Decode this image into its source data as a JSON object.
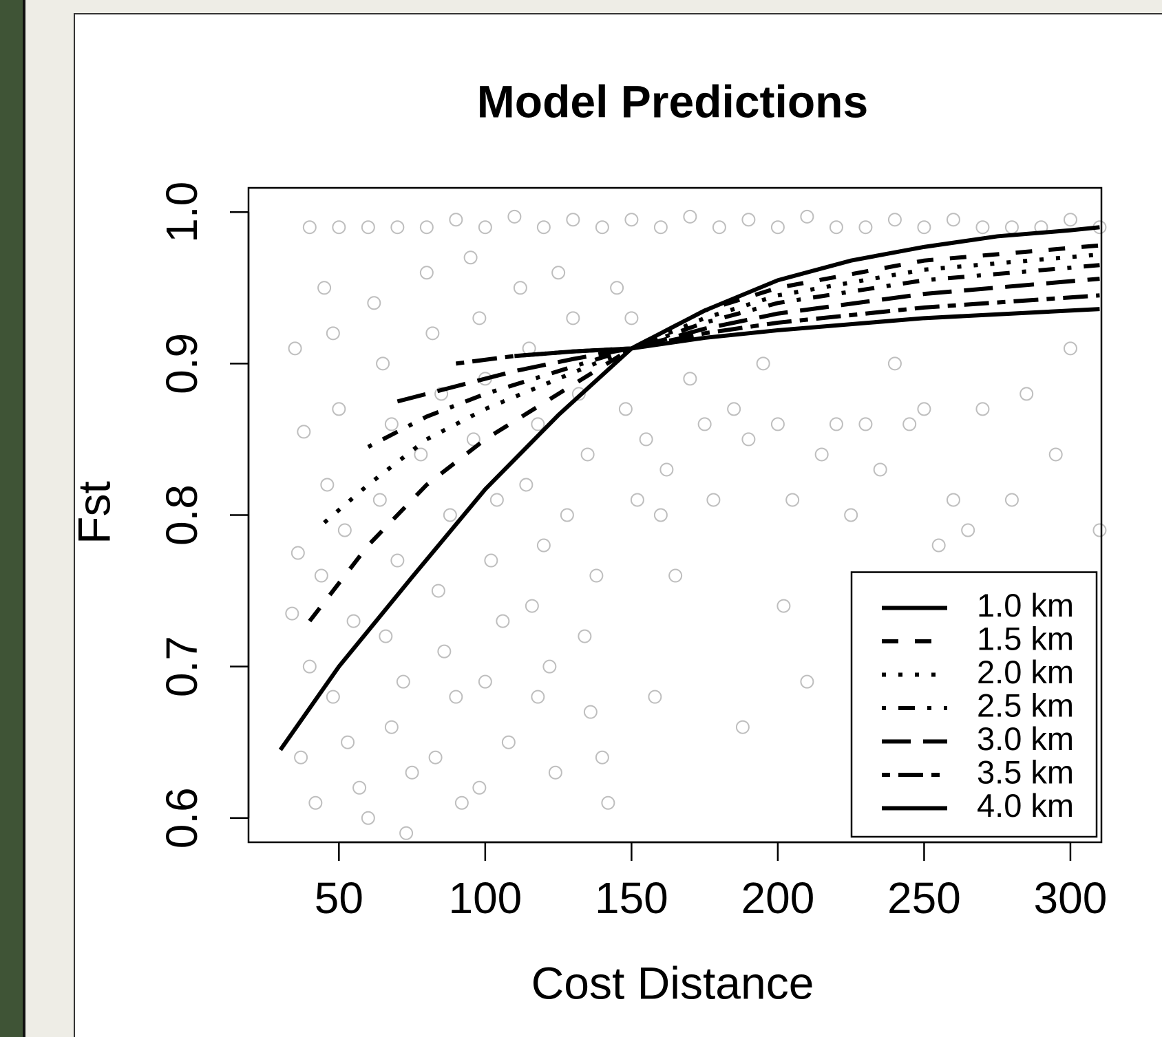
{
  "chart_data": {
    "type": "line",
    "title": "Model Predictions",
    "x_label": "Cost Distance",
    "y_label": "Fst",
    "xlim": [
      19.1,
      310.6
    ],
    "ylim": [
      0.584,
      1.016
    ],
    "xticks": [
      50,
      100,
      150,
      200,
      250,
      300
    ],
    "yticks": [
      0.6,
      0.7,
      0.8,
      0.9,
      {
        "value": 1,
        "label": "1.0"
      }
    ],
    "legend": "bottom-right",
    "scatter": {
      "color": "#bebebe",
      "x": [
        40,
        50,
        60,
        70,
        80,
        90,
        100,
        110,
        120,
        130,
        140,
        150,
        160,
        170,
        180,
        190,
        200,
        210,
        220,
        230,
        240,
        250,
        260,
        270,
        280,
        290,
        300,
        310,
        35,
        38,
        36,
        34,
        40,
        37,
        42,
        45,
        48,
        50,
        46,
        52,
        44,
        55,
        48,
        53,
        57,
        60,
        62,
        65,
        68,
        64,
        70,
        66,
        72,
        68,
        75,
        73,
        80,
        82,
        85,
        78,
        88,
        84,
        86,
        90,
        83,
        92,
        95,
        98,
        100,
        96,
        104,
        102,
        106,
        100,
        108,
        98,
        112,
        115,
        118,
        114,
        120,
        116,
        122,
        118,
        124,
        125,
        130,
        132,
        135,
        128,
        138,
        134,
        136,
        140,
        142,
        145,
        150,
        148,
        155,
        152,
        160,
        158,
        165,
        162,
        170,
        175,
        178,
        185,
        190,
        188,
        195,
        200,
        202,
        205,
        210,
        215,
        220,
        225,
        230,
        235,
        240,
        245,
        250,
        255,
        260,
        265,
        270,
        280,
        285,
        295,
        300,
        310
      ],
      "y": [
        0.99,
        0.99,
        0.99,
        0.99,
        0.99,
        0.995,
        0.99,
        0.997,
        0.99,
        0.995,
        0.99,
        0.995,
        0.99,
        0.997,
        0.99,
        0.995,
        0.99,
        0.997,
        0.99,
        0.99,
        0.995,
        0.99,
        0.995,
        0.99,
        0.99,
        0.99,
        0.995,
        0.99,
        0.91,
        0.855,
        0.775,
        0.735,
        0.7,
        0.64,
        0.61,
        0.95,
        0.92,
        0.87,
        0.82,
        0.79,
        0.76,
        0.73,
        0.68,
        0.65,
        0.62,
        0.6,
        0.94,
        0.9,
        0.86,
        0.81,
        0.77,
        0.72,
        0.69,
        0.66,
        0.63,
        0.59,
        0.96,
        0.92,
        0.88,
        0.84,
        0.8,
        0.75,
        0.71,
        0.68,
        0.64,
        0.61,
        0.97,
        0.93,
        0.89,
        0.85,
        0.81,
        0.77,
        0.73,
        0.69,
        0.65,
        0.62,
        0.95,
        0.91,
        0.86,
        0.82,
        0.78,
        0.74,
        0.7,
        0.68,
        0.63,
        0.96,
        0.93,
        0.88,
        0.84,
        0.8,
        0.76,
        0.72,
        0.67,
        0.64,
        0.61,
        0.95,
        0.93,
        0.87,
        0.85,
        0.81,
        0.8,
        0.68,
        0.76,
        0.83,
        0.89,
        0.86,
        0.81,
        0.87,
        0.85,
        0.66,
        0.9,
        0.86,
        0.74,
        0.81,
        0.69,
        0.84,
        0.86,
        0.8,
        0.86,
        0.83,
        0.9,
        0.86,
        0.87,
        0.78,
        0.81,
        0.79,
        0.87,
        0.81,
        0.88,
        0.84,
        0.91,
        0.79
      ]
    },
    "series": [
      {
        "name": "1.0 km",
        "color": "#000000",
        "linestyle": "solid",
        "x": [
          30,
          50,
          75,
          100,
          125,
          150,
          175,
          200,
          225,
          250,
          275,
          300,
          310
        ],
        "values": [
          0.645,
          0.7,
          0.759,
          0.817,
          0.866,
          0.91,
          0.935,
          0.955,
          0.968,
          0.977,
          0.984,
          0.988,
          0.99
        ]
      },
      {
        "name": "1.5 km",
        "color": "#000000",
        "linestyle": "dashed",
        "x": [
          40,
          60,
          80,
          100,
          125,
          150,
          175,
          200,
          250,
          310
        ],
        "values": [
          0.73,
          0.78,
          0.82,
          0.85,
          0.88,
          0.91,
          0.935,
          0.95,
          0.968,
          0.978
        ]
      },
      {
        "name": "2.0 km",
        "color": "#000000",
        "linestyle": "dotted",
        "x": [
          45,
          60,
          80,
          100,
          125,
          150,
          175,
          200,
          250,
          310
        ],
        "values": [
          0.795,
          0.82,
          0.85,
          0.87,
          0.89,
          0.91,
          0.93,
          0.945,
          0.962,
          0.972
        ]
      },
      {
        "name": "2.5 km",
        "color": "#000000",
        "linestyle": "dotdash",
        "x": [
          60,
          80,
          100,
          125,
          150,
          175,
          200,
          250,
          310
        ],
        "values": [
          0.845,
          0.865,
          0.88,
          0.895,
          0.91,
          0.927,
          0.94,
          0.955,
          0.965
        ]
      },
      {
        "name": "3.0 km",
        "color": "#000000",
        "linestyle": "longdash",
        "x": [
          70,
          90,
          110,
          130,
          150,
          175,
          200,
          250,
          310
        ],
        "values": [
          0.875,
          0.885,
          0.895,
          0.903,
          0.91,
          0.923,
          0.933,
          0.946,
          0.956
        ]
      },
      {
        "name": "3.5 km",
        "color": "#000000",
        "linestyle": "twodash",
        "x": [
          90,
          110,
          130,
          150,
          175,
          200,
          250,
          310
        ],
        "values": [
          0.9,
          0.905,
          0.908,
          0.91,
          0.92,
          0.927,
          0.937,
          0.945
        ]
      },
      {
        "name": "4.0 km",
        "color": "#000000",
        "linestyle": "solid",
        "x": [
          110,
          130,
          150,
          175,
          200,
          250,
          310
        ],
        "values": [
          0.905,
          0.908,
          0.91,
          0.917,
          0.922,
          0.93,
          0.936
        ]
      }
    ]
  }
}
